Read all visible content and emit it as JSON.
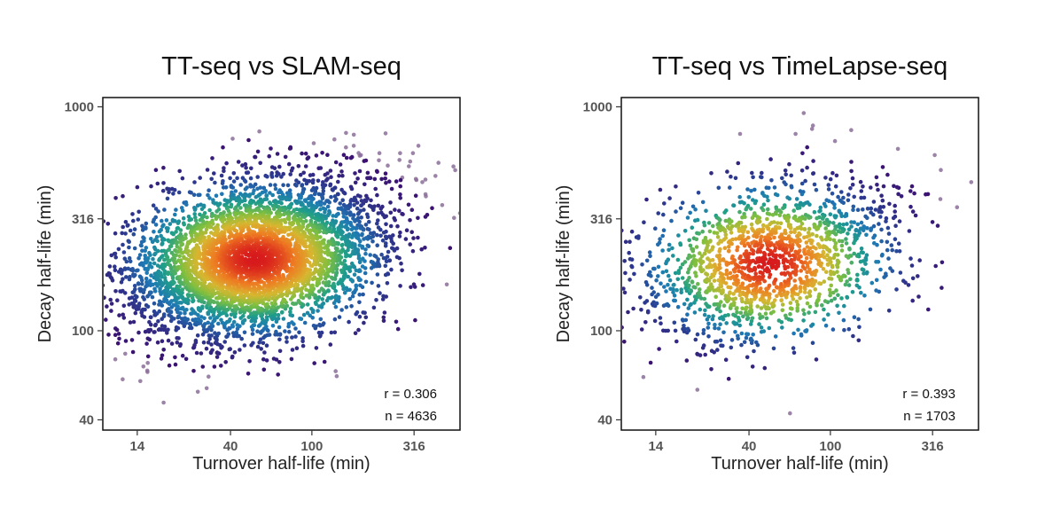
{
  "chart_data": [
    {
      "type": "scatter",
      "title": "TT-seq vs SLAM-seq",
      "xlabel": "Turnover half-life (min)",
      "ylabel": "Decay half-life (min)",
      "x_scale": "log",
      "y_scale": "log",
      "xlim": [
        9.5,
        530
      ],
      "ylim": [
        36,
        1100
      ],
      "x_ticks": [
        14,
        40,
        100,
        316
      ],
      "y_ticks": [
        40,
        100,
        316,
        1000
      ],
      "density_colored": true,
      "stats": [
        "r = 0.306",
        "n = 4636"
      ],
      "points": {
        "n": 4636,
        "center_log10": [
          1.72,
          2.32
        ],
        "sd_log10": [
          0.32,
          0.18
        ],
        "correlation": 0.306
      }
    },
    {
      "type": "scatter",
      "title": "TT-seq vs TimeLapse-seq",
      "xlabel": "Turnover half-life (min)",
      "ylabel": "Decay half-life (min)",
      "x_scale": "log",
      "y_scale": "log",
      "xlim": [
        9.5,
        530
      ],
      "ylim": [
        36,
        1100
      ],
      "x_ticks": [
        14,
        40,
        100,
        316
      ],
      "y_ticks": [
        40,
        100,
        316,
        1000
      ],
      "density_colored": true,
      "stats": [
        "r = 0.393",
        "n = 1703"
      ],
      "points": {
        "n": 1703,
        "center_log10": [
          1.7,
          2.3
        ],
        "sd_log10": [
          0.32,
          0.19
        ],
        "correlation": 0.393
      }
    }
  ],
  "colors": {
    "density_low": "#3f0a6b",
    "density_mid": "#1f9e89",
    "density_high": "#d7191c",
    "sparse_points": "#8b6d99",
    "frame": "#111111"
  }
}
